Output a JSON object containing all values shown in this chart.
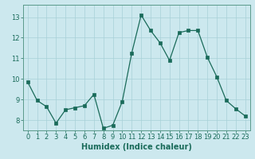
{
  "x": [
    0,
    1,
    2,
    3,
    4,
    5,
    6,
    7,
    8,
    9,
    10,
    11,
    12,
    13,
    14,
    15,
    16,
    17,
    18,
    19,
    20,
    21,
    22,
    23
  ],
  "y": [
    9.85,
    8.95,
    8.65,
    7.85,
    8.5,
    8.6,
    8.7,
    9.25,
    7.6,
    7.75,
    8.9,
    11.25,
    13.1,
    12.35,
    11.75,
    10.9,
    12.25,
    12.35,
    12.35,
    11.05,
    10.1,
    8.95,
    8.55,
    8.2
  ],
  "line_color": "#1a6b5a",
  "marker_color": "#1a6b5a",
  "bg_color": "#cce8ee",
  "grid_color": "#a8d0d8",
  "xlabel": "Humidex (Indice chaleur)",
  "ylabel_ticks": [
    8,
    9,
    10,
    11,
    12,
    13
  ],
  "xlim": [
    -0.5,
    23.5
  ],
  "ylim": [
    7.5,
    13.6
  ],
  "xticks": [
    0,
    1,
    2,
    3,
    4,
    5,
    6,
    7,
    8,
    9,
    10,
    11,
    12,
    13,
    14,
    15,
    16,
    17,
    18,
    19,
    20,
    21,
    22,
    23
  ],
  "tick_color": "#1a6b5a",
  "label_color": "#1a6b5a",
  "xlabel_fontsize": 7.0,
  "tick_fontsize": 6.0,
  "spine_color": "#5a9a8a"
}
